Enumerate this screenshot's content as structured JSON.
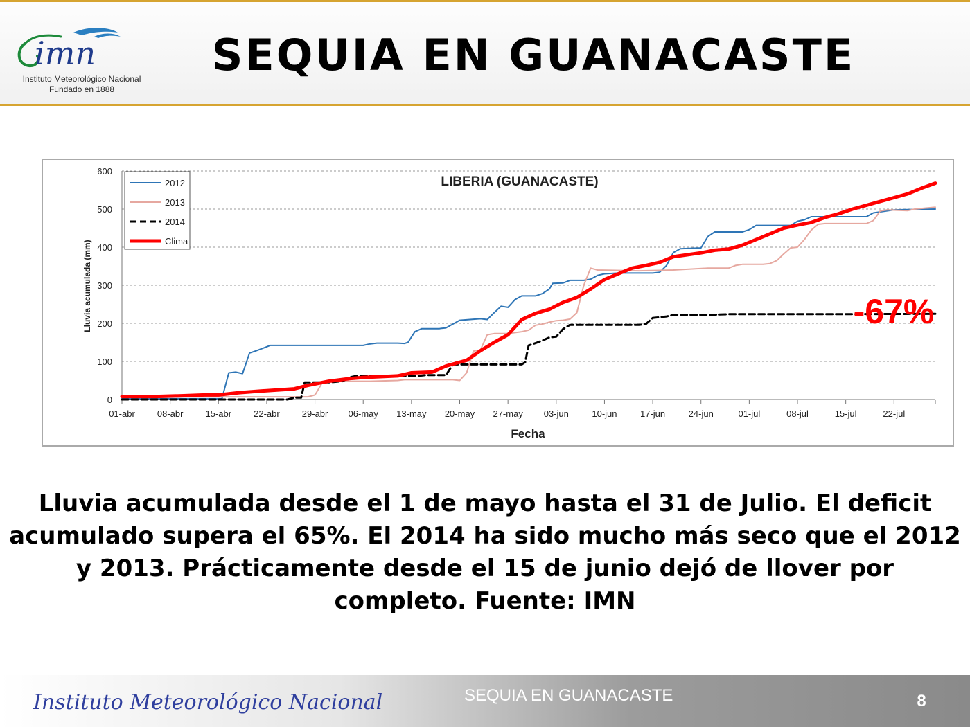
{
  "header": {
    "title": "SEQUIA EN GUANACASTE",
    "logo": {
      "wordmark": "imn",
      "line1": "Instituto Meteorológico Nacional",
      "line2": "Fundado en 1888"
    },
    "accent_color": "#d6a431"
  },
  "chart_data": {
    "type": "line",
    "title": "LIBERIA (GUANACASTE)",
    "xlabel": "Fecha",
    "ylabel": "Lluvia acumulada (mm)",
    "ylim": [
      0,
      600
    ],
    "yticks": [
      "0",
      "100",
      "200",
      "300",
      "400",
      "500",
      "600"
    ],
    "xticks": [
      "01-abr",
      "08-abr",
      "15-abr",
      "22-abr",
      "29-abr",
      "06-may",
      "13-may",
      "20-may",
      "27-may",
      "03-jun",
      "10-jun",
      "17-jun",
      "24-jun",
      "01-jul",
      "08-jul",
      "15-jul",
      "22-jul"
    ],
    "xlim_days": [
      0,
      118
    ],
    "x_note": "x values are day offsets from 01-abr",
    "grid": "horizontal dashed",
    "legend_position": "top-left",
    "annotation": {
      "text": "-67%",
      "color": "#ff0000"
    },
    "series": [
      {
        "name": "2012",
        "color": "#2e75b6",
        "style": "solid",
        "points": [
          [
            0,
            2
          ],
          [
            14.5,
            2
          ],
          [
            15.5,
            70
          ],
          [
            16.5,
            72
          ],
          [
            17.5,
            68
          ],
          [
            18.5,
            122
          ],
          [
            19.5,
            128
          ],
          [
            20.5,
            135
          ],
          [
            21.5,
            142
          ],
          [
            30,
            142
          ],
          [
            35,
            142
          ],
          [
            36,
            146
          ],
          [
            37,
            148
          ],
          [
            40,
            148
          ],
          [
            41,
            147
          ],
          [
            41.5,
            150
          ],
          [
            42.5,
            178
          ],
          [
            43.5,
            186
          ],
          [
            46,
            186
          ],
          [
            47,
            188
          ],
          [
            48,
            198
          ],
          [
            49,
            208
          ],
          [
            52,
            212
          ],
          [
            53,
            210
          ],
          [
            54,
            228
          ],
          [
            55,
            245
          ],
          [
            56,
            242
          ],
          [
            57,
            262
          ],
          [
            58,
            272
          ],
          [
            60,
            272
          ],
          [
            61,
            278
          ],
          [
            62,
            290
          ],
          [
            62.5,
            305
          ],
          [
            64,
            306
          ],
          [
            65,
            313
          ],
          [
            67,
            313
          ],
          [
            68,
            316
          ],
          [
            69,
            326
          ],
          [
            70,
            330
          ],
          [
            72,
            332
          ],
          [
            77,
            332
          ],
          [
            78,
            334
          ],
          [
            79,
            352
          ],
          [
            80,
            386
          ],
          [
            81,
            396
          ],
          [
            84,
            398
          ],
          [
            85,
            428
          ],
          [
            86,
            440
          ],
          [
            89,
            440
          ],
          [
            90,
            440
          ],
          [
            91,
            446
          ],
          [
            92,
            457
          ],
          [
            97,
            457
          ],
          [
            98,
            468
          ],
          [
            99,
            472
          ],
          [
            100,
            480
          ],
          [
            108,
            480
          ],
          [
            109,
            490
          ],
          [
            112,
            498
          ],
          [
            118,
            500
          ]
        ]
      },
      {
        "name": "2013",
        "color": "#e6a8a0",
        "style": "solid",
        "points": [
          [
            0,
            7
          ],
          [
            10,
            7
          ],
          [
            25,
            7
          ],
          [
            27,
            7
          ],
          [
            28,
            12
          ],
          [
            29,
            42
          ],
          [
            30,
            48
          ],
          [
            36,
            48
          ],
          [
            40,
            50
          ],
          [
            41,
            52
          ],
          [
            48,
            52
          ],
          [
            49,
            50
          ],
          [
            50,
            70
          ],
          [
            51,
            127
          ],
          [
            52,
            130
          ],
          [
            53,
            170
          ],
          [
            54,
            173
          ],
          [
            56,
            173
          ],
          [
            58,
            178
          ],
          [
            59,
            182
          ],
          [
            60,
            195
          ],
          [
            61,
            198
          ],
          [
            62,
            203
          ],
          [
            63,
            207
          ],
          [
            64,
            208
          ],
          [
            65,
            211
          ],
          [
            66,
            228
          ],
          [
            67,
            300
          ],
          [
            68,
            345
          ],
          [
            69,
            340
          ],
          [
            75,
            338
          ],
          [
            80,
            340
          ],
          [
            85,
            345
          ],
          [
            88,
            345
          ],
          [
            89,
            352
          ],
          [
            90,
            355
          ],
          [
            93,
            355
          ],
          [
            94,
            357
          ],
          [
            95,
            365
          ],
          [
            96,
            382
          ],
          [
            97,
            398
          ],
          [
            98,
            400
          ],
          [
            99,
            420
          ],
          [
            100,
            445
          ],
          [
            101,
            460
          ],
          [
            102,
            462
          ],
          [
            108,
            462
          ],
          [
            109,
            470
          ],
          [
            110,
            495
          ],
          [
            111,
            498
          ],
          [
            114,
            496
          ],
          [
            115,
            500
          ],
          [
            118,
            505
          ]
        ]
      },
      {
        "name": "2014",
        "color": "#000000",
        "style": "dashed",
        "points": [
          [
            0,
            0
          ],
          [
            24,
            0
          ],
          [
            25,
            5
          ],
          [
            26,
            5
          ],
          [
            26.5,
            45
          ],
          [
            27.5,
            45
          ],
          [
            30,
            45
          ],
          [
            32,
            48
          ],
          [
            33,
            58
          ],
          [
            34,
            62
          ],
          [
            42,
            62
          ],
          [
            43,
            62
          ],
          [
            44,
            64
          ],
          [
            47,
            64
          ],
          [
            48,
            92
          ],
          [
            55,
            92
          ],
          [
            56,
            92
          ],
          [
            58,
            92
          ],
          [
            58.5,
            98
          ],
          [
            59,
            142
          ],
          [
            60,
            148
          ],
          [
            61,
            155
          ],
          [
            62,
            163
          ],
          [
            63,
            165
          ],
          [
            64,
            185
          ],
          [
            65,
            196
          ],
          [
            70,
            196
          ],
          [
            75,
            196
          ],
          [
            76,
            198
          ],
          [
            77,
            214
          ],
          [
            79,
            218
          ],
          [
            80,
            222
          ],
          [
            85,
            222
          ],
          [
            88,
            224
          ],
          [
            93,
            224
          ],
          [
            103,
            224
          ],
          [
            118,
            225
          ]
        ]
      },
      {
        "name": "Clima",
        "color": "#ff0000",
        "style": "solid-thick",
        "points": [
          [
            0,
            8
          ],
          [
            5,
            8
          ],
          [
            9,
            10
          ],
          [
            12,
            12
          ],
          [
            14,
            12
          ],
          [
            17,
            18
          ],
          [
            20,
            22
          ],
          [
            25,
            28
          ],
          [
            27,
            37
          ],
          [
            30,
            48
          ],
          [
            33,
            55
          ],
          [
            35,
            58
          ],
          [
            40,
            62
          ],
          [
            42,
            70
          ],
          [
            45,
            72
          ],
          [
            47,
            88
          ],
          [
            50,
            103
          ],
          [
            52,
            128
          ],
          [
            54,
            150
          ],
          [
            56,
            170
          ],
          [
            58,
            210
          ],
          [
            60,
            226
          ],
          [
            62,
            237
          ],
          [
            64,
            255
          ],
          [
            66,
            268
          ],
          [
            68,
            290
          ],
          [
            70,
            315
          ],
          [
            72,
            330
          ],
          [
            74,
            345
          ],
          [
            76,
            352
          ],
          [
            78,
            360
          ],
          [
            80,
            375
          ],
          [
            82,
            380
          ],
          [
            84,
            385
          ],
          [
            86,
            392
          ],
          [
            88,
            395
          ],
          [
            90,
            405
          ],
          [
            92,
            420
          ],
          [
            94,
            435
          ],
          [
            96,
            450
          ],
          [
            98,
            458
          ],
          [
            100,
            465
          ],
          [
            102,
            478
          ],
          [
            104,
            488
          ],
          [
            106,
            500
          ],
          [
            108,
            510
          ],
          [
            110,
            520
          ],
          [
            112,
            530
          ],
          [
            114,
            540
          ],
          [
            116,
            555
          ],
          [
            118,
            568
          ],
          [
            119,
            575
          ],
          [
            120,
            580
          ],
          [
            121,
            585
          ],
          [
            122,
            590
          ]
        ]
      }
    ]
  },
  "caption": "Lluvia acumulada desde el 1 de mayo hasta el 31 de Julio. El deficit acumulado supera el 65%. El 2014 ha sido mucho más seco que el 2012 y 2013. Prácticamente desde el 15 de junio dejó de llover por completo. Fuente: IMN",
  "footer": {
    "organization": "Instituto Meteorológico Nacional",
    "title": "SEQUIA EN GUANACASTE",
    "page": "8",
    "org_color": "#2f3f9e"
  }
}
